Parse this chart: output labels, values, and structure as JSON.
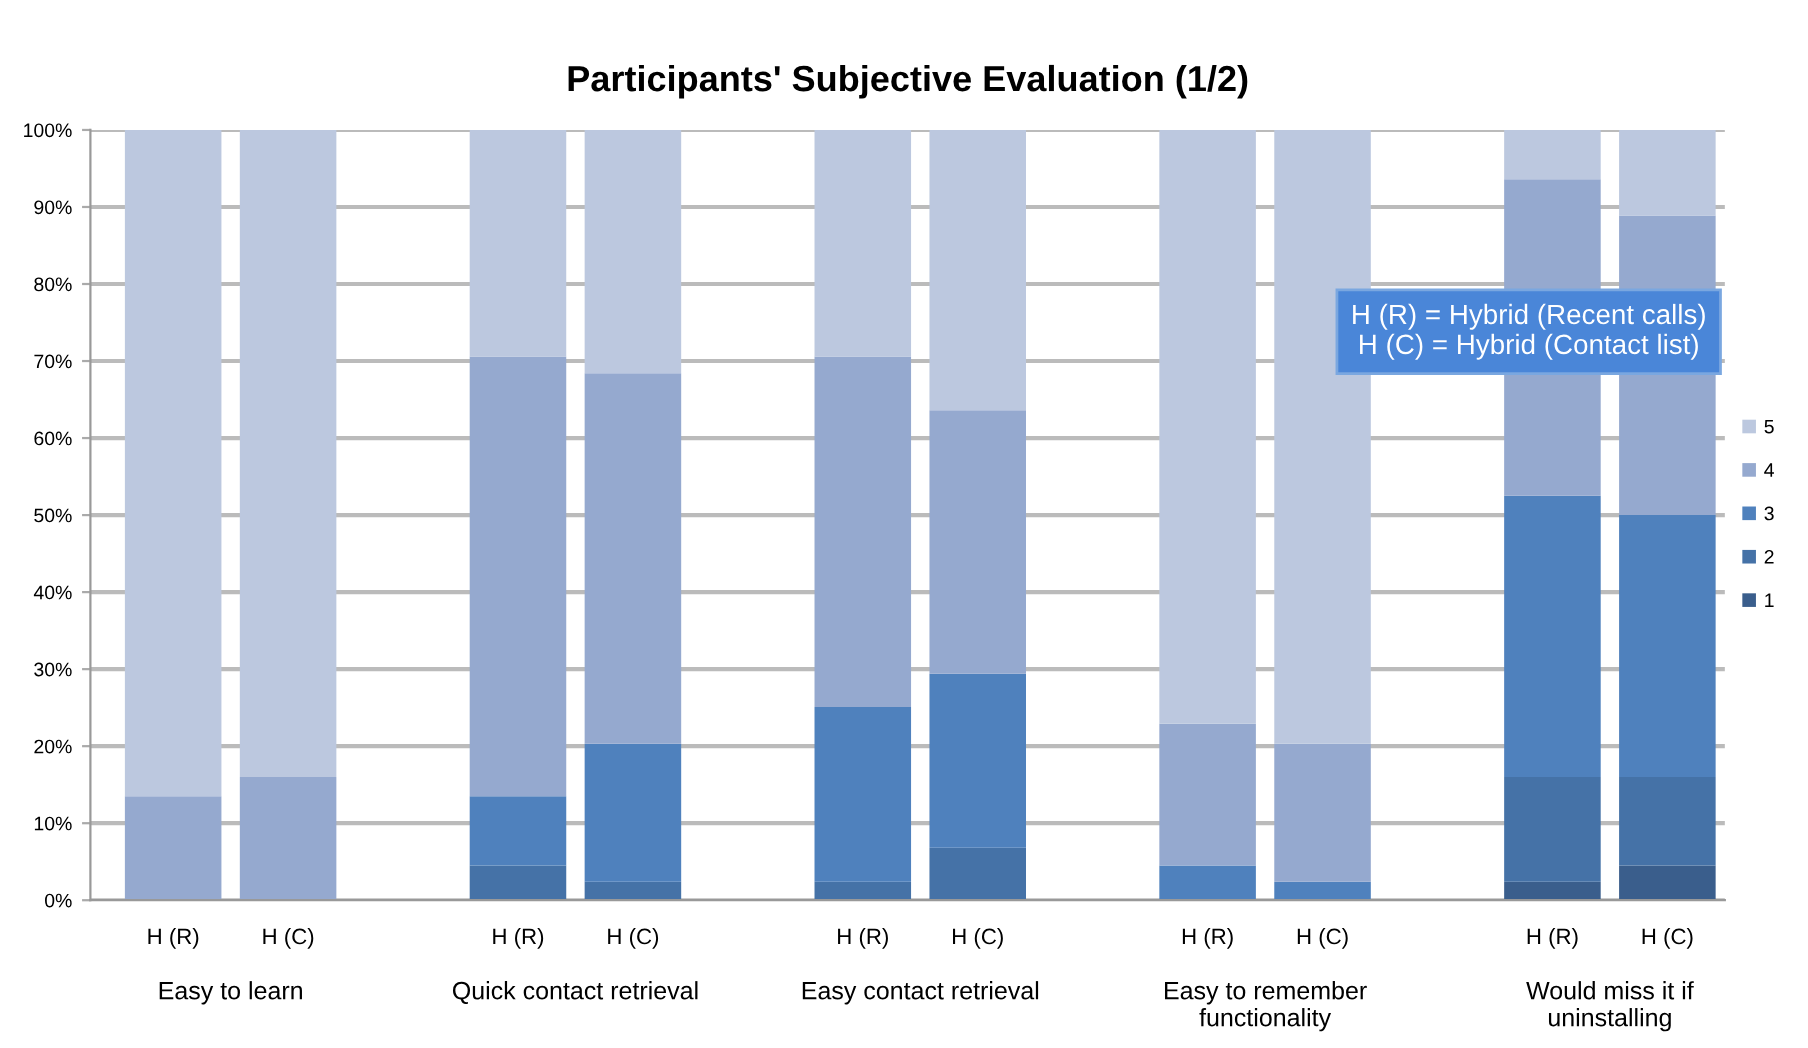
{
  "chart_data": {
    "type": "bar",
    "title": "Participants' Subjective Evaluation (1/2)",
    "categories": [
      "H (R)",
      "H (C)",
      null,
      "H (R)",
      "H (C)",
      null,
      "H (R)",
      "H (C)",
      null,
      "H (R)",
      "H (C)",
      null,
      "H (R)",
      "H (C)"
    ],
    "stacked": true,
    "series": [
      {
        "name": "1",
        "color": "#3a5e8c",
        "values": [
          0,
          0,
          null,
          0,
          0,
          null,
          0,
          0,
          null,
          0,
          0,
          null,
          2.4,
          4.5
        ]
      },
      {
        "name": "2",
        "color": "#4572a7",
        "values": [
          0,
          0,
          null,
          4.5,
          2.4,
          null,
          2.4,
          6.8,
          null,
          0,
          0,
          null,
          13.6,
          11.5
        ]
      },
      {
        "name": "3",
        "color": "#4f81bd",
        "values": [
          0,
          0,
          null,
          9.0,
          17.9,
          null,
          22.7,
          22.6,
          null,
          4.5,
          2.4,
          null,
          36.5,
          34.0
        ]
      },
      {
        "name": "4",
        "color": "#95a9cf",
        "values": [
          13.5,
          16.0,
          null,
          57.1,
          48.1,
          null,
          45.5,
          34.2,
          null,
          18.4,
          17.9,
          null,
          41.1,
          38.9
        ]
      },
      {
        "name": "5",
        "color": "#bcc8df",
        "values": [
          86.5,
          84.0,
          null,
          29.4,
          31.6,
          null,
          29.4,
          36.4,
          null,
          77.1,
          79.7,
          null,
          6.4,
          11.1
        ]
      }
    ],
    "ylim": [
      0,
      100
    ],
    "yticks": [
      {
        "value": 0,
        "label": "0%"
      },
      {
        "value": 10,
        "label": "10%"
      },
      {
        "value": 20,
        "label": "20%"
      },
      {
        "value": 30,
        "label": "30%"
      },
      {
        "value": 40,
        "label": "40%"
      },
      {
        "value": 50,
        "label": "50%"
      },
      {
        "value": 60,
        "label": "60%"
      },
      {
        "value": 70,
        "label": "70%"
      },
      {
        "value": 80,
        "label": "80%"
      },
      {
        "value": 90,
        "label": "90%"
      },
      {
        "value": 100,
        "label": "100%"
      }
    ],
    "grid": "y",
    "legend": "right",
    "annotations": [
      "Easy to learn",
      "Quick contact retrieval",
      "Easy contact retrieval",
      "Easy to remember\nfunctionality",
      "Would miss it if\nuninstalling",
      "H (R) = Hybrid (Recent calls)\nH (C) = Hybrid (Contact list)"
    ]
  }
}
